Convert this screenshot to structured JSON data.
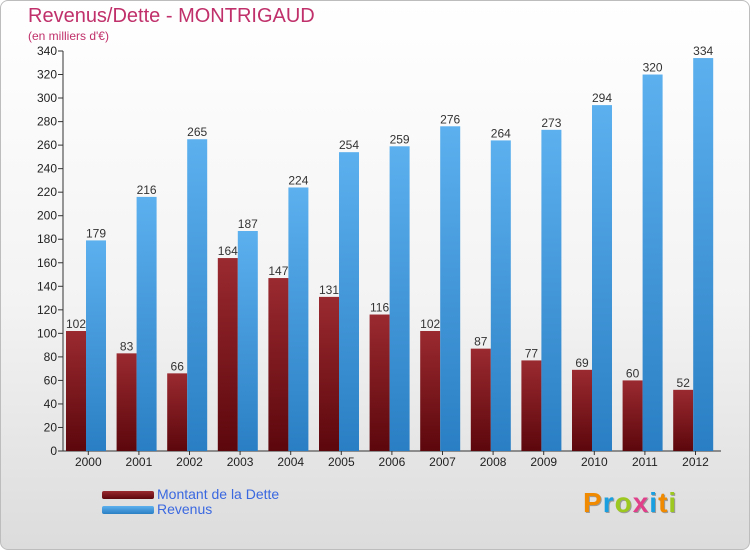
{
  "chart_data": {
    "type": "bar",
    "title": "Revenus/Dette - MONTRIGAUD",
    "subtitle": "(en milliers d'€)",
    "categories": [
      "2000",
      "2001",
      "2002",
      "2003",
      "2004",
      "2005",
      "2006",
      "2007",
      "2008",
      "2009",
      "2010",
      "2011",
      "2012"
    ],
    "series": [
      {
        "name": "Montant de la Dette",
        "color": "#6b0e14",
        "values": [
          102,
          83,
          66,
          164,
          147,
          131,
          116,
          102,
          87,
          77,
          69,
          60,
          52
        ]
      },
      {
        "name": "Revenus",
        "color": "#3a97dd",
        "values": [
          179,
          216,
          265,
          187,
          224,
          254,
          259,
          276,
          264,
          273,
          294,
          320,
          334
        ]
      }
    ],
    "ylim": [
      0,
      340
    ],
    "ytick_step": 20,
    "grid": false,
    "legend_position": "bottom-left"
  },
  "logo": {
    "letters": [
      "P",
      "r",
      "o",
      "x",
      "i",
      "t",
      "i"
    ],
    "colors": [
      "#f08a00",
      "#1aa0e0",
      "#9cc820",
      "#e0408a",
      "#1aa0e0",
      "#f08a00",
      "#9cc820"
    ]
  }
}
